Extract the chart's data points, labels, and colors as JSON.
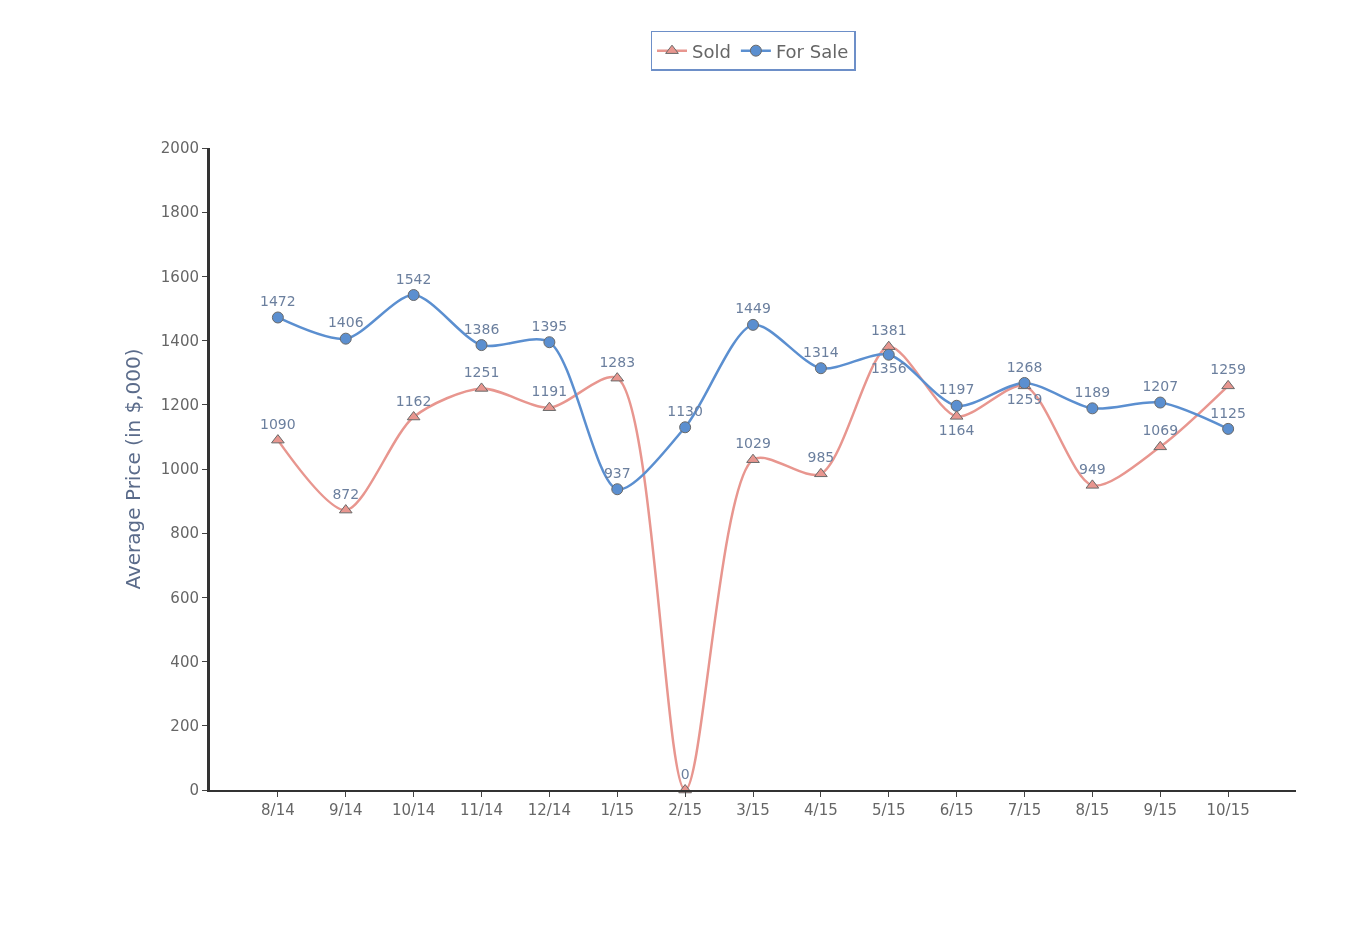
{
  "chart_data": {
    "type": "line",
    "ylabel": "Average Price (in $,000)",
    "categories": [
      "8/14",
      "9/14",
      "10/14",
      "11/14",
      "12/14",
      "1/15",
      "2/15",
      "3/15",
      "4/15",
      "5/15",
      "6/15",
      "7/15",
      "8/15",
      "9/15",
      "10/15"
    ],
    "series": [
      {
        "name": "Sold",
        "color": "#e8968f",
        "marker": "triangle",
        "values": [
          1090,
          872,
          1162,
          1251,
          1191,
          1283,
          0,
          1029,
          985,
          1381,
          1164,
          1259,
          949,
          1069,
          1259
        ]
      },
      {
        "name": "For Sale",
        "color": "#5b8fd0",
        "marker": "circle",
        "values": [
          1472,
          1406,
          1542,
          1386,
          1395,
          937,
          1130,
          1449,
          1314,
          1356,
          1197,
          1268,
          1189,
          1207,
          1125
        ]
      }
    ],
    "ylim": [
      0,
      2000
    ],
    "yticks": [
      0,
      200,
      400,
      600,
      800,
      1000,
      1200,
      1400,
      1600,
      1800,
      2000
    ],
    "data_labels": true,
    "legend": "top",
    "line_style": "solid"
  }
}
